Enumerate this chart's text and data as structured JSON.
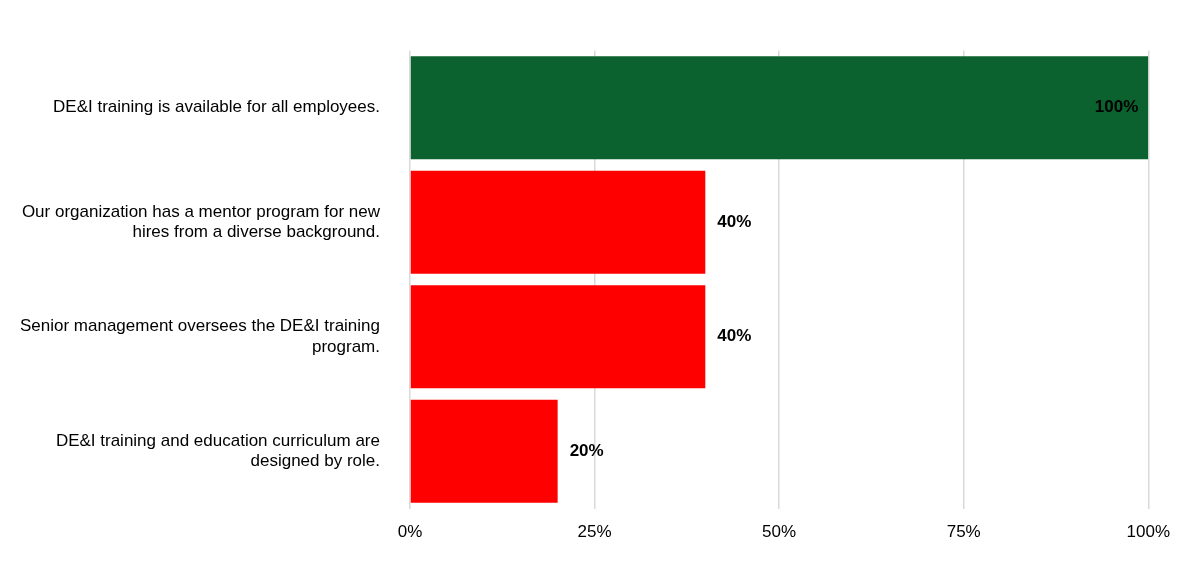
{
  "chart_data": {
    "type": "bar",
    "orientation": "horizontal",
    "categories": [
      "DE&I training is available for all employees.",
      "Our organization has a mentor program for new hires from a diverse background.",
      "Senior management oversees the DE&I training program.",
      "DE&I training and education curriculum are designed by role."
    ],
    "values": [
      100,
      40,
      40,
      20
    ],
    "colors": [
      "#0b622e",
      "#ff0000",
      "#ff0000",
      "#ff0000"
    ],
    "value_labels": [
      "100%",
      "40%",
      "40%",
      "20%"
    ],
    "xlim": [
      0,
      100
    ],
    "xticks": [
      {
        "value": 0,
        "label": "0%"
      },
      {
        "value": 25,
        "label": "25%"
      },
      {
        "value": 50,
        "label": "50%"
      },
      {
        "value": 75,
        "label": "75%"
      },
      {
        "value": 100,
        "label": "100%"
      }
    ],
    "grid": "x",
    "legend": false
  }
}
